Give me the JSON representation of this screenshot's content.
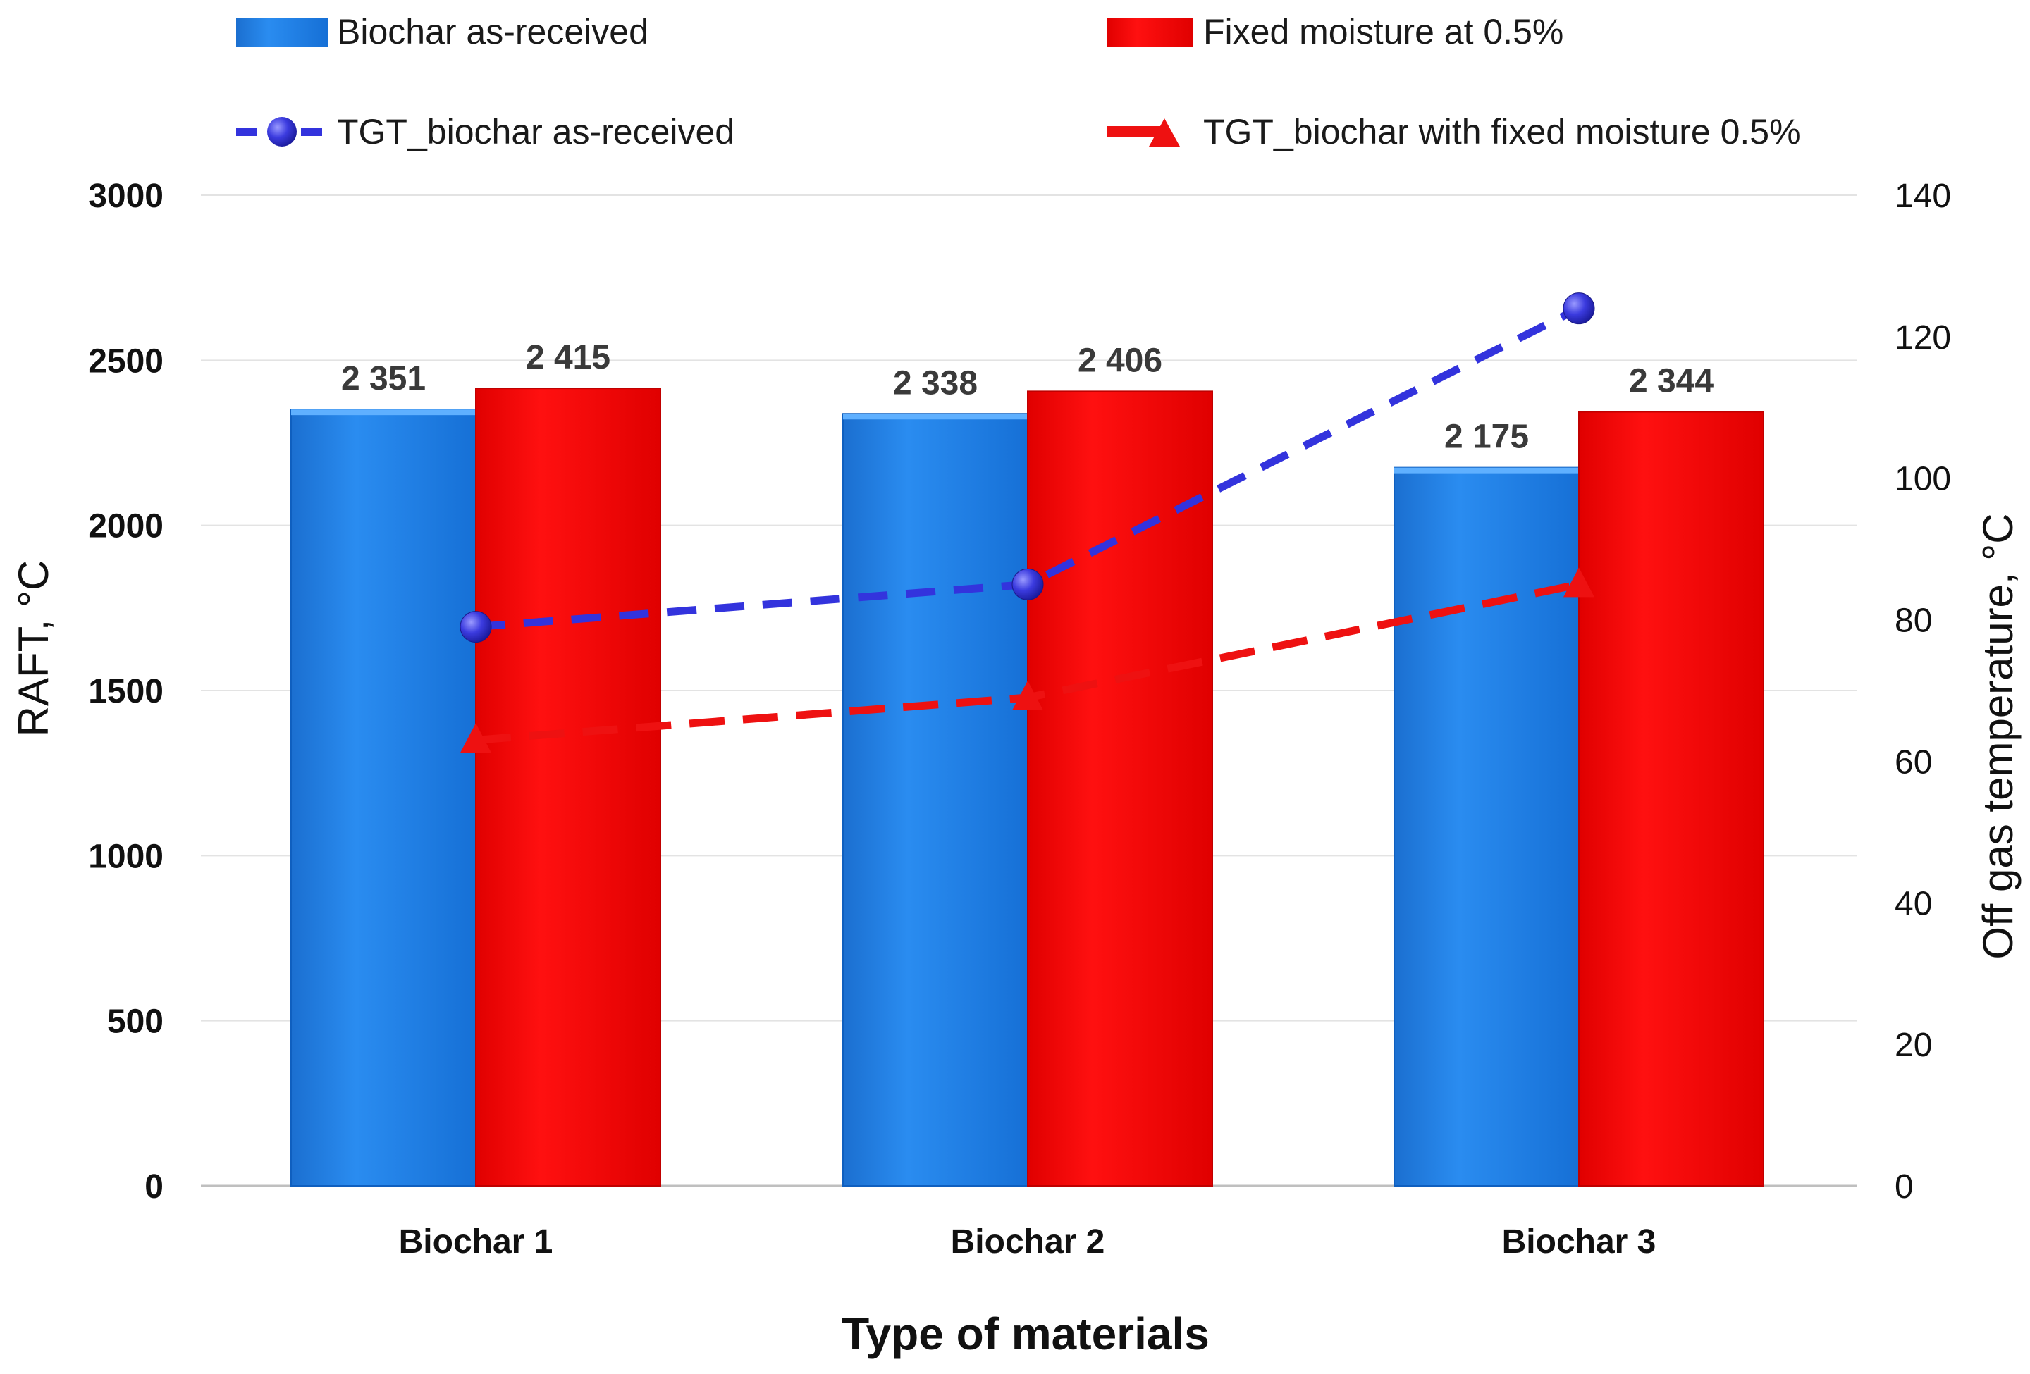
{
  "chart_data": {
    "type": "bar",
    "title": "",
    "xlabel": "Type of materials",
    "ylabel": "RAFT, °C",
    "y2label": "Off gas temperature, °C",
    "ylim": [
      0,
      3000
    ],
    "y2lim": [
      0,
      140
    ],
    "yticks": [
      "0",
      "500",
      "1000",
      "1500",
      "2000",
      "2500",
      "3000"
    ],
    "y2ticks": [
      "0",
      "20",
      "40",
      "60",
      "80",
      "100",
      "120",
      "140"
    ],
    "grid": true,
    "legend_position": "top",
    "categories": [
      "Biochar 1",
      "Biochar 2",
      "Biochar 3"
    ],
    "series": [
      {
        "name": "Biochar as-received",
        "kind": "bar",
        "axis": "left",
        "color": "#1f7fe0",
        "values": [
          2351,
          2338,
          2175
        ],
        "labels": [
          "2 351",
          "2 338",
          "2 175"
        ]
      },
      {
        "name": "Fixed moisture at 0.5%",
        "kind": "bar",
        "axis": "left",
        "color": "#ff0000",
        "values": [
          2415,
          2406,
          2344
        ],
        "labels": [
          "2 415",
          "2 406",
          "2 344"
        ]
      },
      {
        "name": "TGT_biochar as-received",
        "kind": "line",
        "axis": "right",
        "style": "dashed",
        "marker": "circle",
        "color": "#3333dd",
        "values": [
          79,
          85,
          124
        ]
      },
      {
        "name": "TGT_biochar with fixed moisture 0.5%",
        "kind": "line",
        "axis": "right",
        "style": "dashed",
        "marker": "triangle",
        "color": "#ee1111",
        "values": [
          63,
          69,
          85
        ]
      }
    ]
  }
}
